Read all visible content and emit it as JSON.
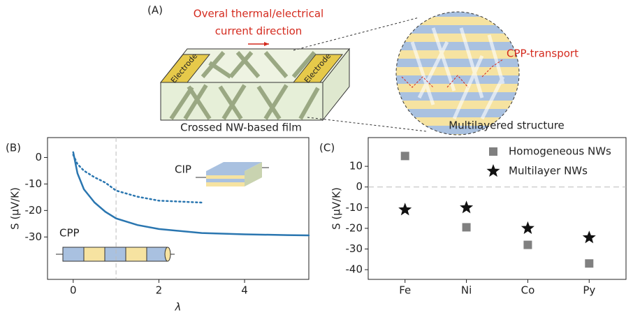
{
  "panel_a": {
    "label": "(A)",
    "current_label_1": "Overal thermal/electrical",
    "current_label_2": "current direction",
    "electrode_left": "Electrode",
    "electrode_right": "Electrode",
    "film_label": "Crossed NW-based film",
    "transport_label": "CPP-transport",
    "structure_label": "Multilayered structure"
  },
  "chart_data": [
    {
      "type": "line",
      "panel_label": "(B)",
      "xlabel": "λ",
      "ylabel": "S (μV/K)",
      "x": [
        0,
        0.1,
        0.25,
        0.5,
        0.75,
        1,
        1.5,
        2,
        3,
        4,
        5,
        5.5
      ],
      "series": [
        {
          "name": "CPP",
          "color": "#2a76b0",
          "linestyle": "solid",
          "values": [
            2,
            -6,
            -12,
            -17,
            -20.5,
            -23,
            -25.5,
            -27,
            -28.5,
            -29,
            -29.3,
            -29.4
          ]
        },
        {
          "name": "CIP",
          "color": "#2a76b0",
          "linestyle": "dotted",
          "values": [
            1,
            -2.5,
            -5,
            -7.5,
            -9.5,
            -12.5,
            -14.8,
            -16.3,
            -17,
            null,
            null,
            null
          ]
        }
      ],
      "vline": 1,
      "xlim": [
        -0.6,
        5.5
      ],
      "ylim": [
        -46,
        7.5
      ],
      "xticks": [
        0,
        2,
        4
      ],
      "yticks": [
        0,
        -10,
        -20,
        -30
      ]
    },
    {
      "type": "scatter",
      "panel_label": "(C)",
      "ylabel": "S (μV/K)",
      "categories": [
        "Fe",
        "Ni",
        "Co",
        "Py"
      ],
      "series": [
        {
          "name": "Homogeneous NWs",
          "color": "#808080",
          "marker": "square",
          "values": [
            15,
            -19.5,
            -28,
            -37
          ]
        },
        {
          "name": "Multilayer NWs",
          "color": "#111111",
          "marker": "star",
          "values": [
            -11,
            -10,
            -20,
            -24.5
          ]
        }
      ],
      "hline": 0,
      "ylim": [
        -44.7,
        23.9
      ],
      "yticks": [
        -40,
        -30,
        -20,
        -10,
        0,
        10
      ],
      "legend": "upper right"
    }
  ]
}
